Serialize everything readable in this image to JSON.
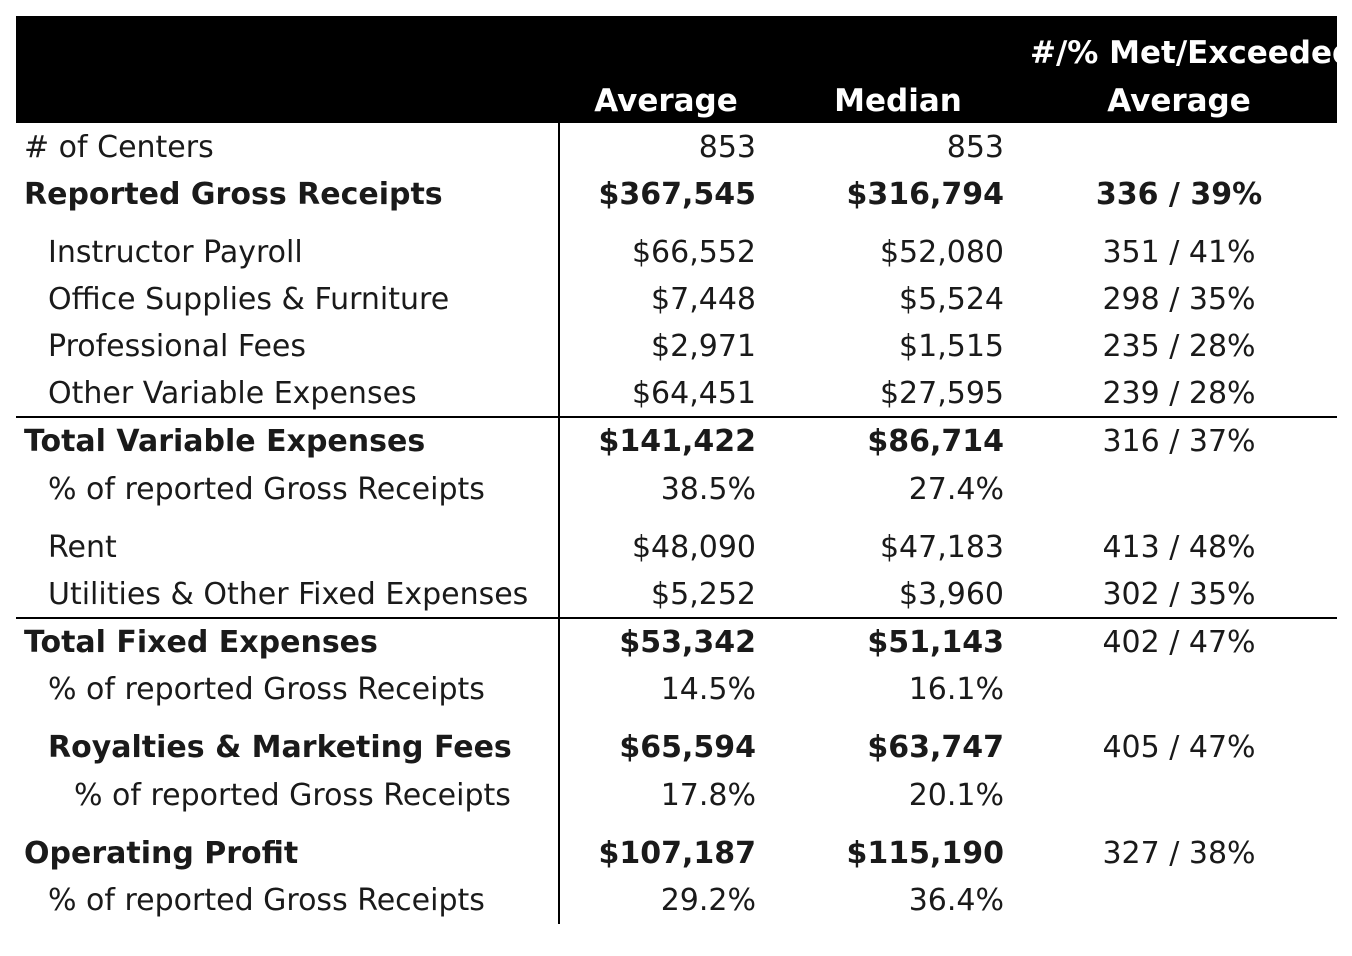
{
  "header": {
    "average": "Average",
    "median": "Median",
    "met_line1": "#/% Met/Exceeded",
    "met_line2": "Average"
  },
  "rows": [
    {
      "label": "# of Centers",
      "average": "853",
      "median": "853",
      "met": ""
    },
    {
      "label": "Reported Gross Receipts",
      "average": "$367,545",
      "median": "$316,794",
      "met": "336 / 39%"
    },
    {
      "label": "Instructor Payroll",
      "average": "$66,552",
      "median": "$52,080",
      "met": "351 / 41%"
    },
    {
      "label": "Office Supplies & Furniture",
      "average": "$7,448",
      "median": "$5,524",
      "met": "298 / 35%"
    },
    {
      "label": "Professional Fees",
      "average": "$2,971",
      "median": "$1,515",
      "met": "235 / 28%"
    },
    {
      "label": "Other Variable Expenses",
      "average": "$64,451",
      "median": "$27,595",
      "met": "239 / 28%"
    },
    {
      "label": "Total Variable Expenses",
      "average": "$141,422",
      "median": "$86,714",
      "met": "316 / 37%"
    },
    {
      "label": "% of reported Gross Receipts",
      "average": "38.5%",
      "median": "27.4%",
      "met": ""
    },
    {
      "label": "Rent",
      "average": "$48,090",
      "median": "$47,183",
      "met": "413 / 48%"
    },
    {
      "label": "Utilities & Other Fixed Expenses",
      "average": "$5,252",
      "median": "$3,960",
      "met": "302 / 35%"
    },
    {
      "label": "Total Fixed Expenses",
      "average": "$53,342",
      "median": "$51,143",
      "met": "402 / 47%"
    },
    {
      "label": "% of reported Gross Receipts",
      "average": "14.5%",
      "median": "16.1%",
      "met": ""
    },
    {
      "label": "Royalties & Marketing Fees",
      "average": "$65,594",
      "median": "$63,747",
      "met": "405 / 47%"
    },
    {
      "label": "% of reported Gross Receipts",
      "average": "17.8%",
      "median": "20.1%",
      "met": ""
    },
    {
      "label": "Operating Profit",
      "average": "$107,187",
      "median": "$115,190",
      "met": "327 / 38%"
    },
    {
      "label": "% of reported Gross Receipts",
      "average": "29.2%",
      "median": "36.4%",
      "met": ""
    }
  ]
}
